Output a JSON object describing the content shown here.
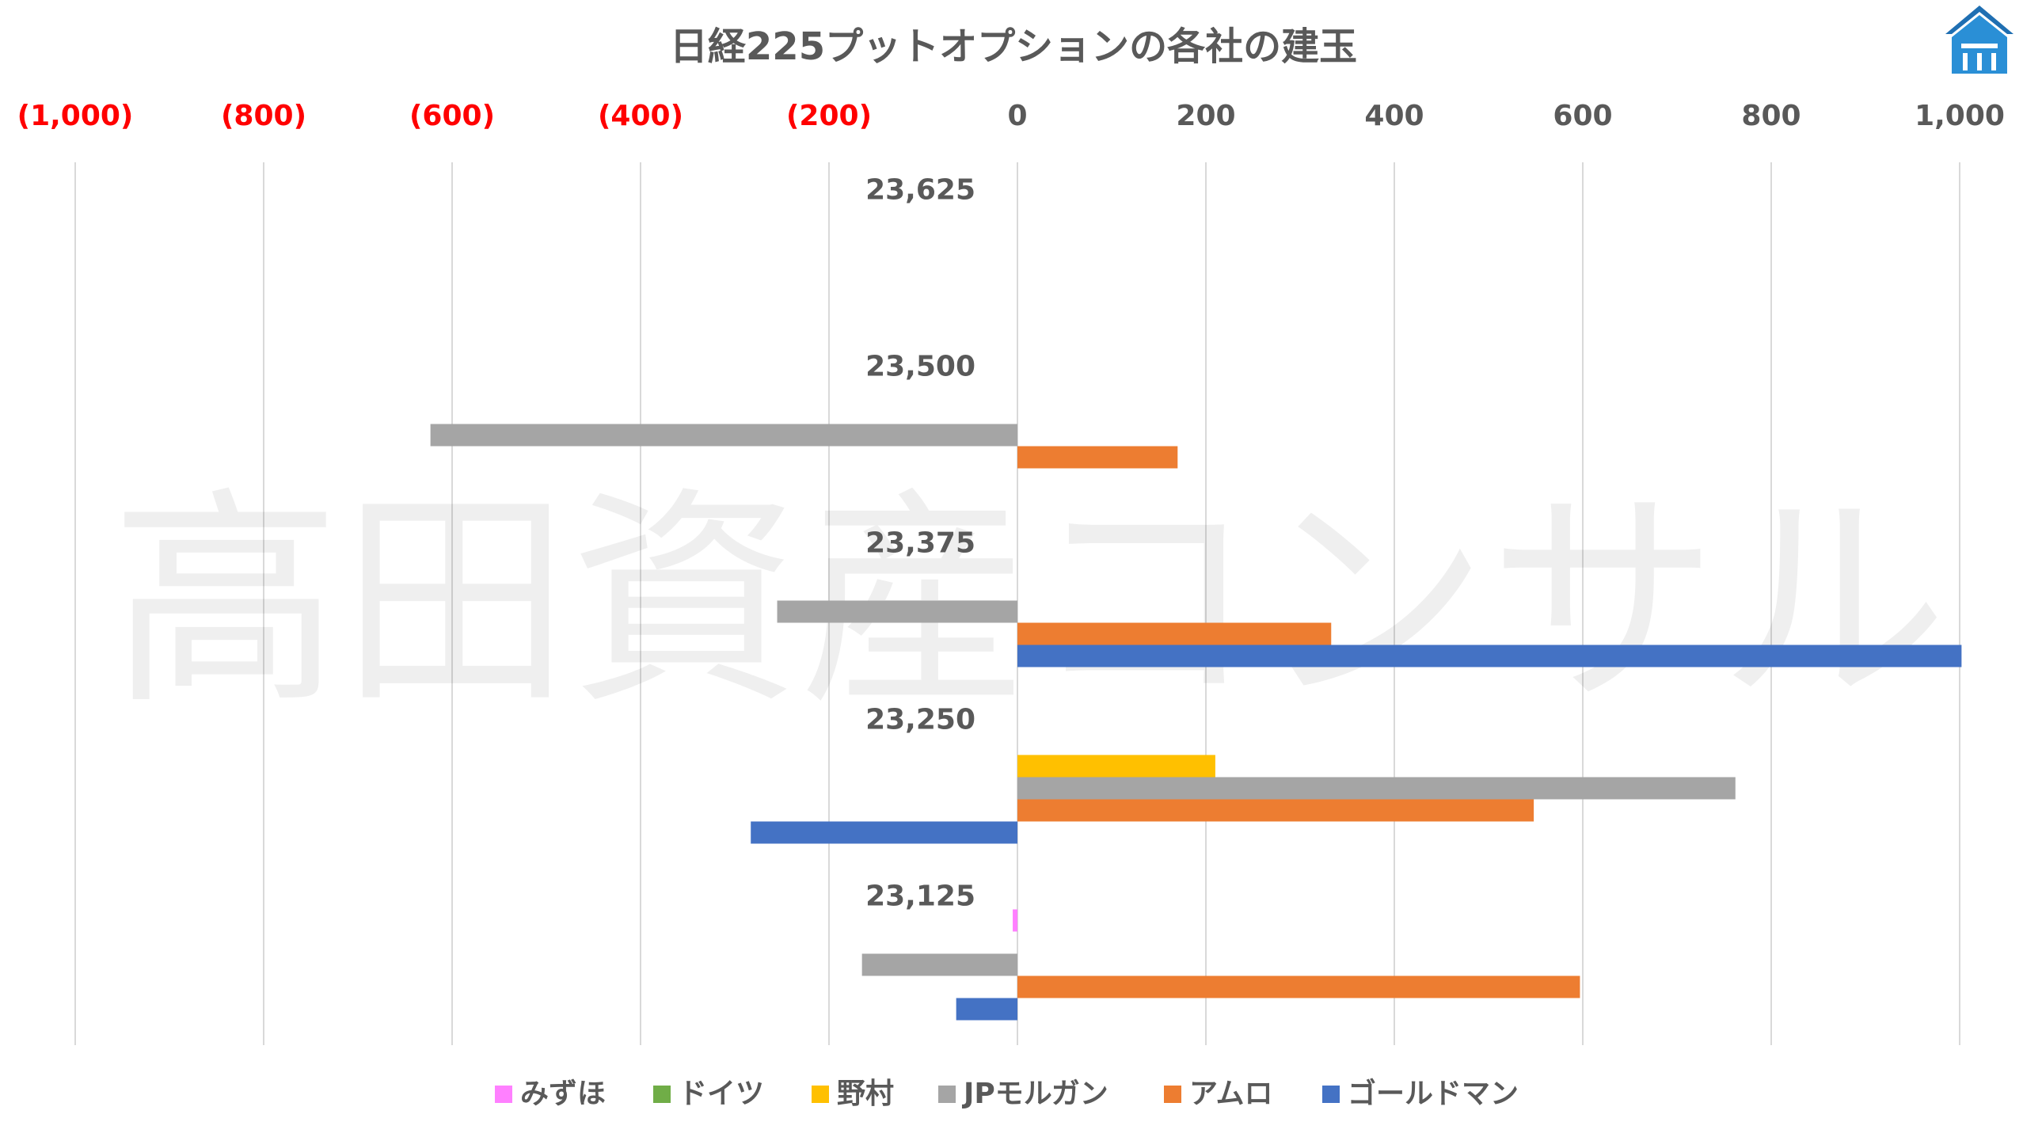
{
  "watermark": "高田資産コンサル",
  "logo_icon": "building-logo-icon",
  "chart_data": {
    "type": "bar",
    "orientation": "horizontal",
    "title": "日経225プットオプションの各社の建玉",
    "xlim": [
      -1000,
      1000
    ],
    "x_ticks": [
      {
        "value": -1000,
        "label": "(1,000)"
      },
      {
        "value": -800,
        "label": "(800)"
      },
      {
        "value": -600,
        "label": "(600)"
      },
      {
        "value": -400,
        "label": "(400)"
      },
      {
        "value": -200,
        "label": "(200)"
      },
      {
        "value": 0,
        "label": "0"
      },
      {
        "value": 200,
        "label": "200"
      },
      {
        "value": 400,
        "label": "400"
      },
      {
        "value": 600,
        "label": "600"
      },
      {
        "value": 800,
        "label": "800"
      },
      {
        "value": 1000,
        "label": "1,000"
      }
    ],
    "grid": true,
    "legend_position": "bottom",
    "categories": [
      "23,625",
      "23,500",
      "23,375",
      "23,250",
      "23,125"
    ],
    "series": [
      {
        "name": "みずほ",
        "color": "#ff80ff",
        "values": [
          0,
          0,
          0,
          0,
          -5
        ]
      },
      {
        "name": "ドイツ",
        "color": "#70ad47",
        "values": [
          0,
          0,
          0,
          0,
          0
        ]
      },
      {
        "name": "野村",
        "color": "#ffc000",
        "values": [
          0,
          0,
          0,
          210,
          0
        ]
      },
      {
        "name": "JPモルガン",
        "color": "#a5a5a5",
        "values": [
          0,
          -623,
          -255,
          762,
          -165
        ]
      },
      {
        "name": "アムロ",
        "color": "#ed7d31",
        "values": [
          0,
          170,
          333,
          548,
          597
        ]
      },
      {
        "name": "ゴールドマン",
        "color": "#4472c4",
        "values": [
          0,
          0,
          1002,
          -283,
          -65
        ]
      }
    ]
  }
}
